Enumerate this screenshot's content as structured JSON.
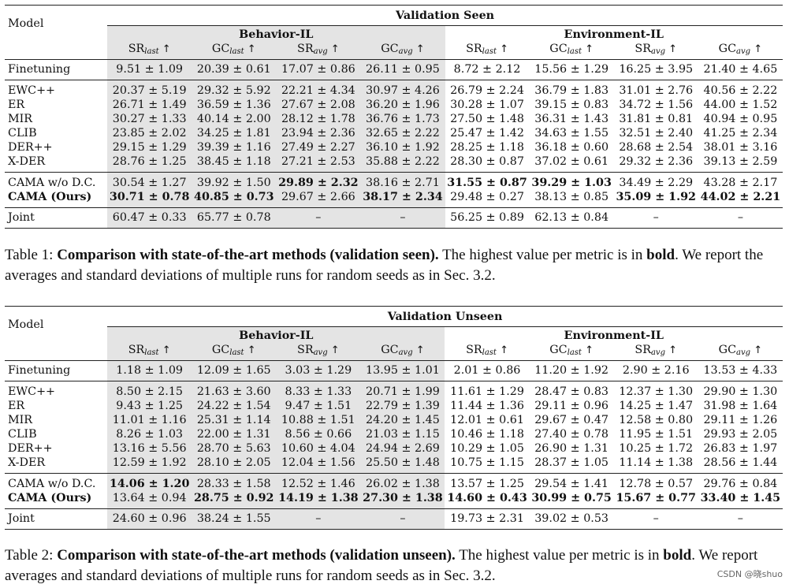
{
  "tables": [
    {
      "title": "Validation Seen",
      "model_header": "Model",
      "groups": [
        "Behavior-IL",
        "Environment-IL"
      ],
      "metrics": [
        {
          "base": "SR",
          "sub": "last"
        },
        {
          "base": "GC",
          "sub": "last"
        },
        {
          "base": "SR",
          "sub": "avg"
        },
        {
          "base": "GC",
          "sub": "avg"
        },
        {
          "base": "SR",
          "sub": "last"
        },
        {
          "base": "GC",
          "sub": "last"
        },
        {
          "base": "SR",
          "sub": "avg"
        },
        {
          "base": "GC",
          "sub": "avg"
        }
      ],
      "arrow": "↑",
      "sections": [
        [
          {
            "model": "Finetuning",
            "model_bold": false,
            "cells": [
              [
                "9.51 ± 1.09",
                false
              ],
              [
                "20.39 ± 0.61",
                false
              ],
              [
                "17.07 ± 0.86",
                false
              ],
              [
                "26.11 ± 0.95",
                false
              ],
              [
                "8.72 ± 2.12",
                false
              ],
              [
                "15.56 ± 1.29",
                false
              ],
              [
                "16.25 ± 3.95",
                false
              ],
              [
                "21.40 ± 4.65",
                false
              ]
            ]
          }
        ],
        [
          {
            "model": "EWC++",
            "model_bold": false,
            "cells": [
              [
                "20.37 ± 5.19",
                false
              ],
              [
                "29.32 ± 5.92",
                false
              ],
              [
                "22.21 ± 4.34",
                false
              ],
              [
                "30.97 ± 4.26",
                false
              ],
              [
                "26.79 ± 2.24",
                false
              ],
              [
                "36.79 ± 1.83",
                false
              ],
              [
                "31.01 ± 2.76",
                false
              ],
              [
                "40.56 ± 2.22",
                false
              ]
            ]
          },
          {
            "model": "ER",
            "model_bold": false,
            "cells": [
              [
                "26.71 ± 1.49",
                false
              ],
              [
                "36.59 ± 1.36",
                false
              ],
              [
                "27.67 ± 2.08",
                false
              ],
              [
                "36.20 ± 1.96",
                false
              ],
              [
                "30.28 ± 1.07",
                false
              ],
              [
                "39.15 ± 0.83",
                false
              ],
              [
                "34.72 ± 1.56",
                false
              ],
              [
                "44.00 ± 1.52",
                false
              ]
            ]
          },
          {
            "model": "MIR",
            "model_bold": false,
            "cells": [
              [
                "30.27 ± 1.33",
                false
              ],
              [
                "40.14 ± 2.00",
                false
              ],
              [
                "28.12 ± 1.78",
                false
              ],
              [
                "36.76 ± 1.73",
                false
              ],
              [
                "27.50 ± 1.48",
                false
              ],
              [
                "36.31 ± 1.43",
                false
              ],
              [
                "31.81 ± 0.81",
                false
              ],
              [
                "40.94 ± 0.95",
                false
              ]
            ]
          },
          {
            "model": "CLIB",
            "model_bold": false,
            "cells": [
              [
                "23.85 ± 2.02",
                false
              ],
              [
                "34.25 ± 1.81",
                false
              ],
              [
                "23.94 ± 2.36",
                false
              ],
              [
                "32.65 ± 2.22",
                false
              ],
              [
                "25.47 ± 1.42",
                false
              ],
              [
                "34.63 ± 1.55",
                false
              ],
              [
                "32.51 ± 2.40",
                false
              ],
              [
                "41.25 ± 2.34",
                false
              ]
            ]
          },
          {
            "model": "DER++",
            "model_bold": false,
            "cells": [
              [
                "29.15 ± 1.29",
                false
              ],
              [
                "39.39 ± 1.16",
                false
              ],
              [
                "27.49 ± 2.27",
                false
              ],
              [
                "36.10 ± 1.92",
                false
              ],
              [
                "28.25 ± 1.18",
                false
              ],
              [
                "36.18 ± 0.60",
                false
              ],
              [
                "28.68 ± 2.54",
                false
              ],
              [
                "38.01 ± 3.16",
                false
              ]
            ]
          },
          {
            "model": "X-DER",
            "model_bold": false,
            "cells": [
              [
                "28.76 ± 1.25",
                false
              ],
              [
                "38.45 ± 1.18",
                false
              ],
              [
                "27.21 ± 2.53",
                false
              ],
              [
                "35.88 ± 2.22",
                false
              ],
              [
                "28.30 ± 0.87",
                false
              ],
              [
                "37.02 ± 0.61",
                false
              ],
              [
                "29.32 ± 2.36",
                false
              ],
              [
                "39.13 ± 2.59",
                false
              ]
            ]
          }
        ],
        [
          {
            "model": "CAMA w/o D.C.",
            "model_bold": false,
            "cells": [
              [
                "30.54 ± 1.27",
                false
              ],
              [
                "39.92 ± 1.50",
                false
              ],
              [
                "29.89 ± 2.32",
                true
              ],
              [
                "38.16 ± 2.71",
                false
              ],
              [
                "31.55 ± 0.87",
                true
              ],
              [
                "39.29 ± 1.03",
                true
              ],
              [
                "34.49 ± 2.29",
                false
              ],
              [
                "43.28 ± 2.17",
                false
              ]
            ]
          },
          {
            "model": "CAMA (Ours)",
            "model_bold": true,
            "cells": [
              [
                "30.71 ± 0.78",
                true
              ],
              [
                "40.85 ± 0.73",
                true
              ],
              [
                "29.67 ± 2.66",
                false
              ],
              [
                "38.17 ± 2.34",
                true
              ],
              [
                "29.48 ± 0.27",
                false
              ],
              [
                "38.13 ± 0.85",
                false
              ],
              [
                "35.09 ± 1.92",
                true
              ],
              [
                "44.02 ± 2.21",
                true
              ]
            ]
          }
        ],
        [
          {
            "model": "Joint",
            "model_bold": false,
            "cells": [
              [
                "60.47 ± 0.33",
                false
              ],
              [
                "65.77 ± 0.78",
                false
              ],
              [
                "–",
                false
              ],
              [
                "–",
                false
              ],
              [
                "56.25 ± 0.89",
                false
              ],
              [
                "62.13 ± 0.84",
                false
              ],
              [
                "–",
                false
              ],
              [
                "–",
                false
              ]
            ]
          }
        ]
      ]
    },
    {
      "title": "Validation Unseen",
      "model_header": "Model",
      "groups": [
        "Behavior-IL",
        "Environment-IL"
      ],
      "metrics": [
        {
          "base": "SR",
          "sub": "last"
        },
        {
          "base": "GC",
          "sub": "last"
        },
        {
          "base": "SR",
          "sub": "avg"
        },
        {
          "base": "GC",
          "sub": "avg"
        },
        {
          "base": "SR",
          "sub": "last"
        },
        {
          "base": "GC",
          "sub": "last"
        },
        {
          "base": "SR",
          "sub": "avg"
        },
        {
          "base": "GC",
          "sub": "avg"
        }
      ],
      "arrow": "↑",
      "sections": [
        [
          {
            "model": "Finetuning",
            "model_bold": false,
            "cells": [
              [
                "1.18 ± 1.09",
                false
              ],
              [
                "12.09 ± 1.65",
                false
              ],
              [
                "3.03 ± 1.29",
                false
              ],
              [
                "13.95 ± 1.01",
                false
              ],
              [
                "2.01 ± 0.86",
                false
              ],
              [
                "11.20 ± 1.92",
                false
              ],
              [
                "2.90 ± 2.16",
                false
              ],
              [
                "13.53 ± 4.33",
                false
              ]
            ]
          }
        ],
        [
          {
            "model": "EWC++",
            "model_bold": false,
            "cells": [
              [
                "8.50 ± 2.15",
                false
              ],
              [
                "21.63 ± 3.60",
                false
              ],
              [
                "8.33 ± 1.33",
                false
              ],
              [
                "20.71 ± 1.99",
                false
              ],
              [
                "11.61 ± 1.29",
                false
              ],
              [
                "28.47 ± 0.83",
                false
              ],
              [
                "12.37 ± 1.30",
                false
              ],
              [
                "29.90 ± 1.30",
                false
              ]
            ]
          },
          {
            "model": "ER",
            "model_bold": false,
            "cells": [
              [
                "9.43 ± 1.25",
                false
              ],
              [
                "24.22 ± 1.54",
                false
              ],
              [
                "9.47 ± 1.51",
                false
              ],
              [
                "22.79 ± 1.39",
                false
              ],
              [
                "11.44 ± 1.36",
                false
              ],
              [
                "29.11 ± 0.96",
                false
              ],
              [
                "14.25 ± 1.47",
                false
              ],
              [
                "31.98 ± 1.64",
                false
              ]
            ]
          },
          {
            "model": "MIR",
            "model_bold": false,
            "cells": [
              [
                "11.01 ± 1.16",
                false
              ],
              [
                "25.31 ± 1.14",
                false
              ],
              [
                "10.88 ± 1.51",
                false
              ],
              [
                "24.20 ± 1.45",
                false
              ],
              [
                "12.01 ± 0.61",
                false
              ],
              [
                "29.67 ± 0.47",
                false
              ],
              [
                "12.58 ± 0.80",
                false
              ],
              [
                "29.11 ± 1.26",
                false
              ]
            ]
          },
          {
            "model": "CLIB",
            "model_bold": false,
            "cells": [
              [
                "8.26 ± 1.03",
                false
              ],
              [
                "22.00 ± 1.31",
                false
              ],
              [
                "8.56 ± 0.66",
                false
              ],
              [
                "21.03 ± 1.15",
                false
              ],
              [
                "10.46 ± 1.18",
                false
              ],
              [
                "27.40 ± 0.78",
                false
              ],
              [
                "11.95 ± 1.51",
                false
              ],
              [
                "29.93 ± 2.05",
                false
              ]
            ]
          },
          {
            "model": "DER++",
            "model_bold": false,
            "cells": [
              [
                "13.16 ± 5.56",
                false
              ],
              [
                "28.70 ± 5.63",
                false
              ],
              [
                "10.60 ± 4.04",
                false
              ],
              [
                "24.94 ± 2.69",
                false
              ],
              [
                "10.29 ± 1.05",
                false
              ],
              [
                "26.90 ± 1.31",
                false
              ],
              [
                "10.25 ± 1.72",
                false
              ],
              [
                "26.83 ± 1.97",
                false
              ]
            ]
          },
          {
            "model": "X-DER",
            "model_bold": false,
            "cells": [
              [
                "12.59 ± 1.92",
                false
              ],
              [
                "28.10 ± 2.05",
                false
              ],
              [
                "12.04 ± 1.56",
                false
              ],
              [
                "25.50 ± 1.48",
                false
              ],
              [
                "10.75 ± 1.15",
                false
              ],
              [
                "28.37 ± 1.05",
                false
              ],
              [
                "11.14 ± 1.38",
                false
              ],
              [
                "28.56 ± 1.44",
                false
              ]
            ]
          }
        ],
        [
          {
            "model": "CAMA w/o D.C.",
            "model_bold": false,
            "cells": [
              [
                "14.06 ± 1.20",
                true
              ],
              [
                "28.33 ± 1.58",
                false
              ],
              [
                "12.52 ± 1.46",
                false
              ],
              [
                "26.02 ± 1.38",
                false
              ],
              [
                "13.57 ± 1.25",
                false
              ],
              [
                "29.54 ± 1.41",
                false
              ],
              [
                "12.78 ± 0.57",
                false
              ],
              [
                "29.76 ± 0.84",
                false
              ]
            ]
          },
          {
            "model": "CAMA (Ours)",
            "model_bold": true,
            "cells": [
              [
                "13.64 ± 0.94",
                false
              ],
              [
                "28.75 ± 0.92",
                true
              ],
              [
                "14.19 ± 1.38",
                true
              ],
              [
                "27.30 ± 1.38",
                true
              ],
              [
                "14.60 ± 0.43",
                true
              ],
              [
                "30.99 ± 0.75",
                true
              ],
              [
                "15.67 ± 0.77",
                true
              ],
              [
                "33.40 ± 1.45",
                true
              ]
            ]
          }
        ],
        [
          {
            "model": "Joint",
            "model_bold": false,
            "cells": [
              [
                "24.60 ± 0.96",
                false
              ],
              [
                "38.24 ± 1.55",
                false
              ],
              [
                "–",
                false
              ],
              [
                "–",
                false
              ],
              [
                "19.73 ± 2.31",
                false
              ],
              [
                "39.02 ± 0.53",
                false
              ],
              [
                "–",
                false
              ],
              [
                "–",
                false
              ]
            ]
          }
        ]
      ]
    }
  ],
  "captions": [
    {
      "label": "Table 1:",
      "bold_title": "Comparison with state-of-the-art methods (validation seen).",
      "rest_1": " The highest value per metric is in ",
      "bold_word": "bold",
      "rest_2": ". We report the averages and standard deviations of multiple runs for random seeds as in Sec. 3.2."
    },
    {
      "label": "Table 2:",
      "bold_title": "Comparison with state-of-the-art methods (validation unseen).",
      "rest_1": " The highest value per metric is in ",
      "bold_word": "bold",
      "rest_2": ". We report averages and standard deviations of multiple runs for random seeds as in Sec. 3.2."
    }
  ],
  "watermark": "CSDN @晓shuo"
}
